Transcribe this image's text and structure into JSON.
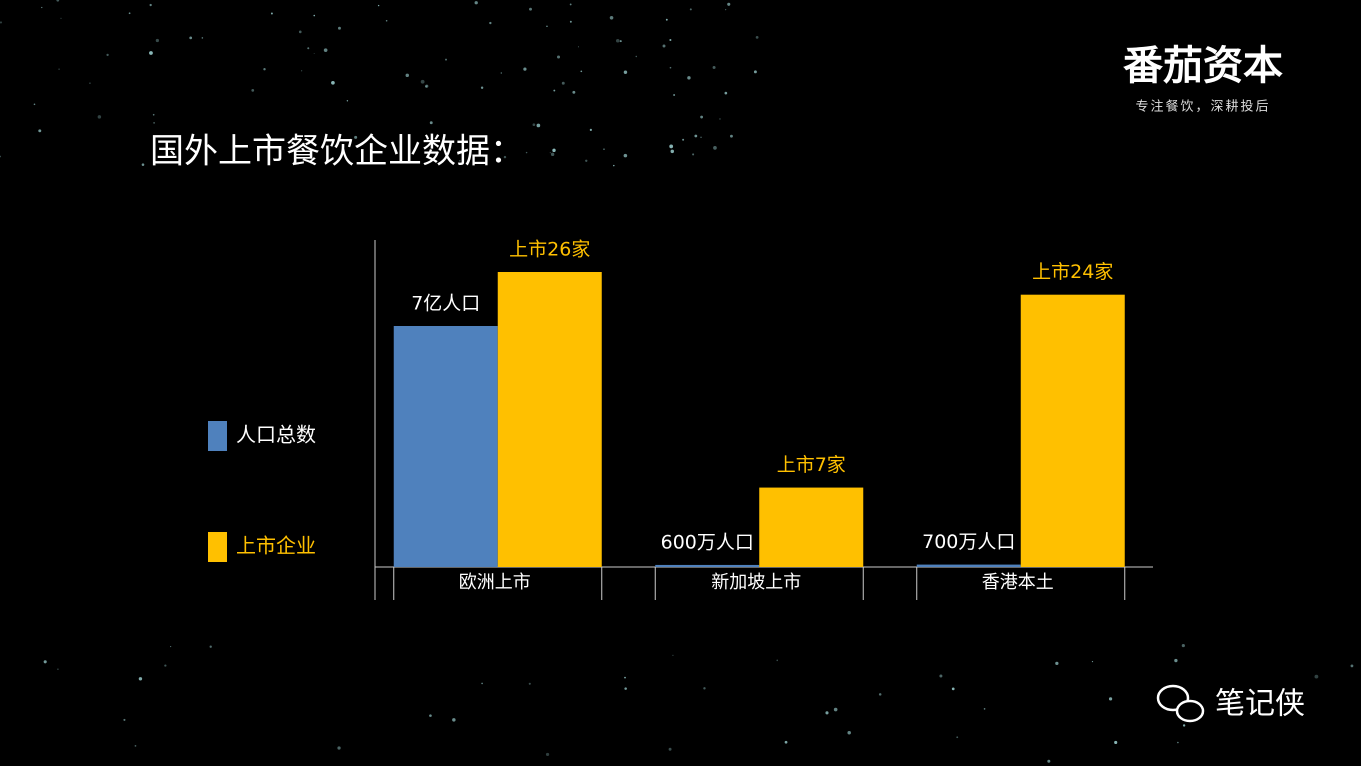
{
  "header": {
    "logo": "番茄资本",
    "tagline": "专注餐饮，深耕投后",
    "title": "国外上市餐饮企业数据："
  },
  "chart_data": {
    "type": "bar",
    "categories": [
      "欧洲上市",
      "新加坡上市",
      "香港本土"
    ],
    "series": [
      {
        "name": "人口总数",
        "color": "#4f81bd",
        "values": [
          70000,
          600,
          700
        ],
        "value_labels": [
          "7亿人口",
          "600万人口",
          "700万人口"
        ]
      },
      {
        "name": "上市企业",
        "color": "#ffc000",
        "values": [
          26,
          7,
          24
        ],
        "value_labels": [
          "上市26家",
          "上市7家",
          "上市24家"
        ]
      }
    ]
  },
  "footer": {
    "watermark": "笔记侠"
  }
}
